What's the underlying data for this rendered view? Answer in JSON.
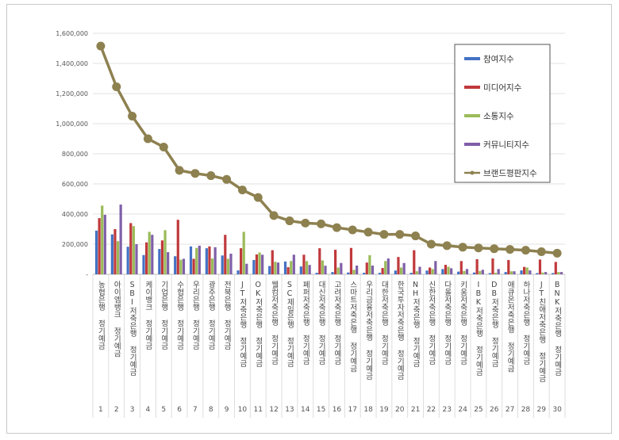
{
  "chart_data": {
    "type": "bar",
    "title": "",
    "xlabel": "",
    "ylabel": "",
    "ylim": [
      0,
      1600000
    ],
    "yticks": [
      "-",
      "200,000",
      "400,000",
      "600,000",
      "800,000",
      "1,000,000",
      "1,200,000",
      "1,400,000",
      "1,600,000"
    ],
    "grid": true,
    "legend_position": "top-right",
    "ranks": [
      "1",
      "2",
      "3",
      "4",
      "5",
      "6",
      "7",
      "8",
      "9",
      "10",
      "11",
      "12",
      "13",
      "14",
      "15",
      "16",
      "17",
      "18",
      "19",
      "20",
      "21",
      "22",
      "23",
      "24",
      "25",
      "26",
      "27",
      "28",
      "29",
      "30"
    ],
    "categories": [
      "농협은행 정기예금",
      "아이엠뱅크 정기예금",
      "SBI저축은행 정기예금",
      "케이뱅크 정기예금",
      "기업은행 정기예금",
      "수협은행 정기예금",
      "우리은행 정기예금",
      "광주은행 정기예금",
      "전북은행 정기예금",
      "JT저축은행 정기예금",
      "OK저축은행 정기예금",
      "웰컴저축은행 정기예금",
      "SC제일은행 정기예금",
      "페퍼저축은행 정기예금",
      "대신저축은행 정기예금",
      "고려저축은행 정기예금",
      "스마트저축은행 정기예금",
      "우리금융저축은행 정기예금",
      "대한저축은행 정기예금",
      "한국투자저축은행 정기예금",
      "NH저축은행 정기예금",
      "신한저축은행 정기예금",
      "다올저축은행 정기예금",
      "키움저축은행 정기예금",
      "IBK저축은행 정기예금",
      "DB저축은행 정기예금",
      "애큐온저축은행 정기예금",
      "하나저축은행 정기예금",
      "JT친애저축은행 정기예금",
      "BNK저축은행 정기예금"
    ],
    "series": [
      {
        "name": "참여지수",
        "kind": "bar",
        "color": "#4472C4",
        "values": [
          290000,
          265000,
          183000,
          128000,
          168000,
          120000,
          185000,
          173000,
          125000,
          26000,
          95000,
          55000,
          85000,
          52000,
          10000,
          15000,
          12000,
          10000,
          10000,
          25000,
          10000,
          25000,
          35000,
          18000,
          12000,
          8000,
          15000,
          26000,
          8000,
          8000
        ]
      },
      {
        "name": "미디어지수",
        "kind": "bar",
        "color": "#C0393B",
        "values": [
          373000,
          300000,
          340000,
          212000,
          225000,
          362000,
          103000,
          185000,
          262000,
          173000,
          132000,
          160000,
          47000,
          130000,
          173000,
          163000,
          175000,
          78000,
          42000,
          115000,
          160000,
          45000,
          63000,
          88000,
          100000,
          105000,
          95000,
          49000,
          98000,
          82000
        ]
      },
      {
        "name": "소통지수",
        "kind": "bar",
        "color": "#9BBB59",
        "values": [
          456000,
          220000,
          320000,
          282000,
          293000,
          97000,
          175000,
          105000,
          103000,
          282000,
          145000,
          83000,
          88000,
          88000,
          92000,
          45000,
          30000,
          127000,
          88000,
          45000,
          20000,
          35000,
          50000,
          22000,
          22000,
          10000,
          20000,
          45000,
          12000,
          15000
        ]
      },
      {
        "name": "커뮤니티지수",
        "kind": "bar",
        "color": "#7F5FA8",
        "values": [
          395000,
          463000,
          200000,
          262000,
          147000,
          103000,
          190000,
          180000,
          137000,
          70000,
          130000,
          78000,
          130000,
          62000,
          57000,
          75000,
          58000,
          58000,
          105000,
          75000,
          50000,
          88000,
          40000,
          35000,
          30000,
          35000,
          20000,
          26000,
          15000,
          15000
        ]
      },
      {
        "name": "브랜드평판지수",
        "kind": "line",
        "color": "#8E8150",
        "values": [
          1515000,
          1245000,
          1050000,
          900000,
          845000,
          690000,
          670000,
          655000,
          630000,
          560000,
          510000,
          390000,
          355000,
          340000,
          335000,
          310000,
          295000,
          280000,
          265000,
          265000,
          255000,
          200000,
          190000,
          180000,
          175000,
          170000,
          165000,
          160000,
          150000,
          140000
        ]
      }
    ]
  }
}
